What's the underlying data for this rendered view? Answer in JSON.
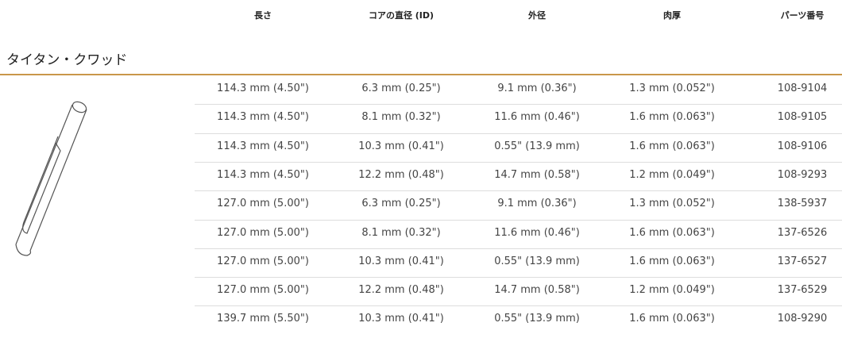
{
  "table": {
    "columns": [
      "長さ",
      "コアの直径 (ID)",
      "外径",
      "肉厚",
      "パーツ番号"
    ],
    "section": "タイタン・クワッド",
    "rows": [
      [
        "114.3 mm (4.50\")",
        "6.3 mm (0.25\")",
        "9.1 mm (0.36\")",
        "1.3 mm (0.052\")",
        "108-9104"
      ],
      [
        "114.3 mm (4.50\")",
        "8.1 mm (0.32\")",
        "11.6 mm (0.46\")",
        "1.6 mm (0.063\")",
        "108-9105"
      ],
      [
        "114.3 mm (4.50\")",
        "10.3 mm (0.41\")",
        "0.55\" (13.9 mm)",
        "1.6 mm (0.063\")",
        "108-9106"
      ],
      [
        "114.3 mm (4.50\")",
        "12.2 mm (0.48\")",
        "14.7 mm (0.58\")",
        "1.2 mm (0.049\")",
        "108-9293"
      ],
      [
        "127.0 mm (5.00\")",
        "6.3 mm (0.25\")",
        "9.1 mm (0.36\")",
        "1.3 mm (0.052\")",
        "138-5937"
      ],
      [
        "127.0 mm (5.00\")",
        "8.1 mm (0.32\")",
        "11.6 mm (0.46\")",
        "1.6 mm (0.063\")",
        "137-6526"
      ],
      [
        "127.0 mm (5.00\")",
        "10.3 mm (0.41\")",
        "0.55\" (13.9 mm)",
        "1.6 mm (0.063\")",
        "137-6527"
      ],
      [
        "127.0 mm (5.00\")",
        "12.2 mm (0.48\")",
        "14.7 mm (0.58\")",
        "1.2 mm (0.049\")",
        "137-6529"
      ],
      [
        "139.7 mm (5.50\")",
        "10.3 mm (0.41\")",
        "0.55\" (13.9 mm)",
        "1.6 mm (0.063\")",
        "108-9290"
      ]
    ]
  }
}
